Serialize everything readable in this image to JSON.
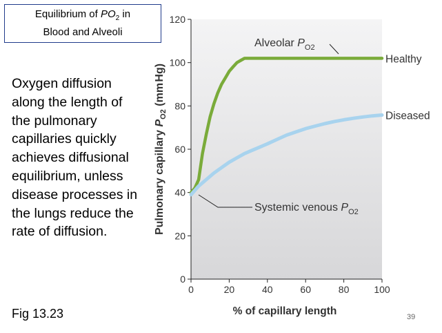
{
  "slide": {
    "title_part1": "Equilibrium of ",
    "title_po": "PO",
    "title_sub": "2",
    "title_part2": " in",
    "title_line2": "Blood and Alveoli",
    "description": "Oxygen diffusion along the length of the pulmonary capillaries quickly achieves diffusional equilibrium, unless disease processes in the lungs reduce the rate of diffusion.",
    "figure_label": "Fig 13.23",
    "slide_number": "39"
  },
  "chart_data": {
    "type": "line",
    "xlabel": "% of capillary length",
    "ylabel_pre": "Pulmonary capillary ",
    "ylabel_p": "P",
    "ylabel_sub": "O2",
    "ylabel_post": " (mm Hg)",
    "xlim": [
      0,
      100
    ],
    "ylim": [
      0,
      120
    ],
    "x_ticks": [
      0,
      20,
      40,
      60,
      80,
      100
    ],
    "y_ticks": [
      0,
      20,
      40,
      60,
      80,
      100,
      120
    ],
    "grid": false,
    "series": [
      {
        "name": "Healthy",
        "color": "#7aab3a",
        "x": [
          0,
          2,
          4,
          6,
          8,
          10,
          12,
          14,
          16,
          18,
          20,
          22,
          24,
          26,
          28,
          30,
          33,
          40,
          50,
          60,
          70,
          80,
          90,
          100
        ],
        "y": [
          40,
          42,
          46,
          58,
          67,
          75,
          81,
          86,
          90,
          93,
          96,
          98,
          100,
          101,
          102,
          102,
          102,
          102,
          102,
          102,
          102,
          102,
          102,
          102
        ]
      },
      {
        "name": "Diseased",
        "color": "#a8d3ee",
        "x": [
          0,
          4,
          8,
          12,
          16,
          20,
          24,
          28,
          32,
          36,
          40,
          45,
          50,
          55,
          60,
          65,
          70,
          75,
          80,
          85,
          90,
          95,
          100
        ],
        "y": [
          39,
          43,
          46,
          49,
          51.5,
          54,
          56,
          58,
          59.5,
          61,
          62.5,
          64.5,
          66.5,
          68,
          69.5,
          70.7,
          71.8,
          72.8,
          73.6,
          74.3,
          74.9,
          75.4,
          75.8
        ]
      }
    ],
    "annotations": {
      "alveolar_pre": "Alveolar ",
      "alveolar_p": "P",
      "alveolar_sub": "O2",
      "venous_pre": "Systemic venous ",
      "venous_p": "P",
      "venous_sub": "O2"
    }
  }
}
